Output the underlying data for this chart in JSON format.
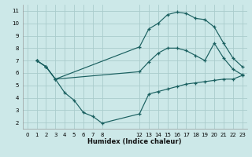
{
  "xlabel": "Humidex (Indice chaleur)",
  "bg_color": "#cce8e8",
  "grid_color": "#aacccc",
  "line_color": "#1a6060",
  "xlim": [
    -0.5,
    23.5
  ],
  "ylim": [
    1.5,
    11.5
  ],
  "xticks": [
    0,
    1,
    2,
    3,
    4,
    5,
    6,
    7,
    8,
    12,
    13,
    14,
    15,
    16,
    17,
    18,
    19,
    20,
    21,
    22,
    23
  ],
  "yticks": [
    2,
    3,
    4,
    5,
    6,
    7,
    8,
    9,
    10,
    11
  ],
  "line1_x": [
    1,
    2,
    3,
    4,
    5,
    6,
    7,
    8,
    12,
    13,
    14,
    15,
    16,
    17,
    18,
    19,
    20,
    21,
    22,
    23
  ],
  "line1_y": [
    7.0,
    6.5,
    5.5,
    4.4,
    3.8,
    2.8,
    2.5,
    1.95,
    2.7,
    4.3,
    4.5,
    4.7,
    4.9,
    5.1,
    5.2,
    5.3,
    5.4,
    5.5,
    5.5,
    5.8
  ],
  "line2_x": [
    1,
    2,
    3,
    12,
    13,
    14,
    15,
    16,
    17,
    18,
    19,
    20,
    21,
    22,
    23
  ],
  "line2_y": [
    7.0,
    6.5,
    5.5,
    6.1,
    6.9,
    7.6,
    8.0,
    8.0,
    7.8,
    7.4,
    7.0,
    8.4,
    7.2,
    6.3,
    5.85
  ],
  "line3_x": [
    1,
    2,
    3,
    12,
    13,
    14,
    15,
    16,
    17,
    18,
    19,
    20,
    21,
    22,
    23
  ],
  "line3_y": [
    7.0,
    6.5,
    5.5,
    8.1,
    9.55,
    10.0,
    10.7,
    10.9,
    10.8,
    10.4,
    10.3,
    9.7,
    8.4,
    7.2,
    6.5
  ]
}
